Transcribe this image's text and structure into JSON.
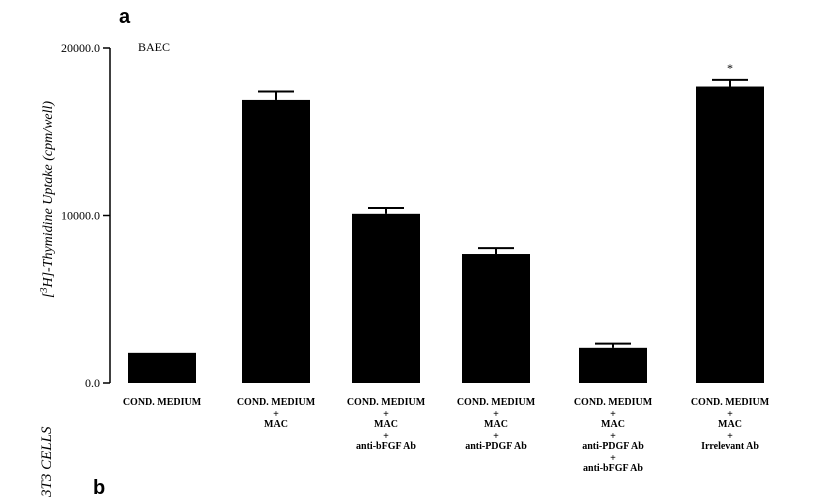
{
  "panel_a_letter": "a",
  "panel_b_letter": "b",
  "side_label": "3T3 CELLS",
  "chart_data": {
    "type": "bar",
    "title": "BAEC",
    "ylabel_sup": "3",
    "ylabel_rest": "H]-Thymidine Uptake (cpm/well)",
    "ylabel_prefix": "[",
    "ylim": [
      0,
      20000
    ],
    "yticks": [
      0,
      10000,
      20000
    ],
    "ytick_labels": [
      "0.0",
      "10000.0",
      "20000.0"
    ],
    "categories": [
      [
        "COND. MEDIUM"
      ],
      [
        "COND. MEDIUM",
        "+",
        "MAC"
      ],
      [
        "COND. MEDIUM",
        "+",
        "MAC",
        "+",
        "anti-bFGF Ab"
      ],
      [
        "COND. MEDIUM",
        "+",
        "MAC",
        "+",
        "anti-PDGF Ab"
      ],
      [
        "COND. MEDIUM",
        "+",
        "MAC",
        "+",
        "anti-PDGF Ab",
        "+",
        "anti-bFGF Ab"
      ],
      [
        "COND. MEDIUM",
        "+",
        "MAC",
        "+",
        "Irrelevant Ab"
      ]
    ],
    "values": [
      1800,
      16900,
      10100,
      7700,
      2100,
      17700
    ],
    "errors": [
      0,
      500,
      350,
      350,
      250,
      400
    ],
    "annotations": [
      {
        "index": 5,
        "text": "*"
      }
    ],
    "color": "#000000",
    "grid": false,
    "legend": "none"
  }
}
